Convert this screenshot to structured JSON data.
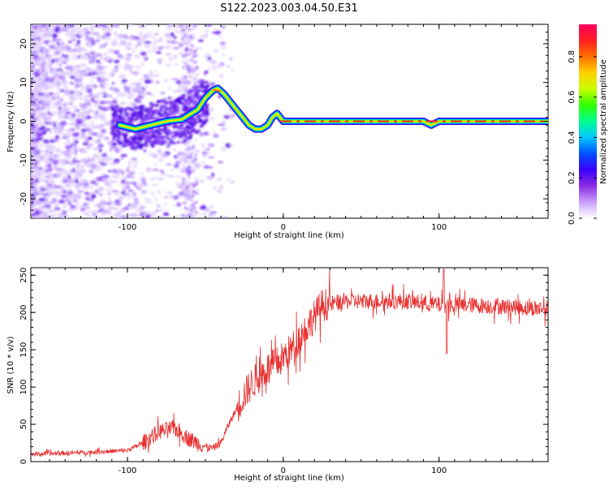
{
  "title": "S122.2023.003.04.50.E31",
  "chart_data": [
    {
      "type": "heatmap",
      "xlabel": "Height of straight line (km)",
      "ylabel": "Frequency (Hz)",
      "xlim": [
        -162,
        170
      ],
      "ylim": [
        -25,
        25
      ],
      "xticks": [
        -100,
        0,
        100
      ],
      "yticks": [
        -20,
        -10,
        0,
        10,
        20
      ],
      "colorbar": {
        "label": "Normalized spectral amplitude",
        "range": [
          0,
          0.96
        ],
        "ticks": [
          0.0,
          0.2,
          0.4,
          0.6,
          0.8
        ],
        "colors": [
          "#ffffff",
          "#c8a0ff",
          "#8a2be2",
          "#3a00ff",
          "#0050ff",
          "#00c8ff",
          "#00ff90",
          "#30ff00",
          "#c8ff00",
          "#ffd000",
          "#ff7000",
          "#ff2020",
          "#ff0060"
        ]
      },
      "ridge": {
        "x": [
          -105,
          -95,
          -85,
          -75,
          -65,
          -55,
          -50,
          -45,
          -42,
          -38,
          -34,
          -30,
          -26,
          -22,
          -18,
          -14,
          -10,
          -7,
          -4,
          -2,
          0,
          10,
          40,
          90,
          95,
          100,
          170
        ],
        "y": [
          -1,
          -2,
          -1,
          0,
          0.5,
          3,
          6,
          8,
          8.5,
          7,
          5,
          3,
          1,
          -1,
          -2,
          -2,
          -1,
          1,
          2,
          1,
          0,
          0,
          0,
          0,
          -1,
          0,
          0
        ]
      }
    },
    {
      "type": "line",
      "xlabel": "Height of straight line (km)",
      "ylabel": "SNR (10 * v/v)",
      "xlim": [
        -162,
        170
      ],
      "ylim": [
        0,
        260
      ],
      "xticks": [
        -100,
        0,
        100
      ],
      "yticks": [
        0,
        50,
        100,
        150,
        200,
        250
      ],
      "color": "#e83030",
      "envelope": {
        "x": [
          -162,
          -130,
          -100,
          -90,
          -80,
          -70,
          -60,
          -50,
          -45,
          -40,
          -35,
          -30,
          -25,
          -20,
          -15,
          -10,
          -5,
          0,
          5,
          10,
          15,
          20,
          25,
          40,
          80,
          100,
          120,
          140,
          170
        ],
        "y": [
          10,
          12,
          15,
          25,
          40,
          45,
          30,
          20,
          18,
          25,
          50,
          70,
          90,
          105,
          115,
          125,
          130,
          140,
          150,
          165,
          180,
          195,
          210,
          215,
          215,
          210,
          210,
          208,
          205
        ]
      },
      "annotations": [
        {
          "x": 103,
          "y": 258,
          "note": "peak"
        },
        {
          "x": 105,
          "y": 145,
          "note": "dip"
        }
      ]
    }
  ]
}
